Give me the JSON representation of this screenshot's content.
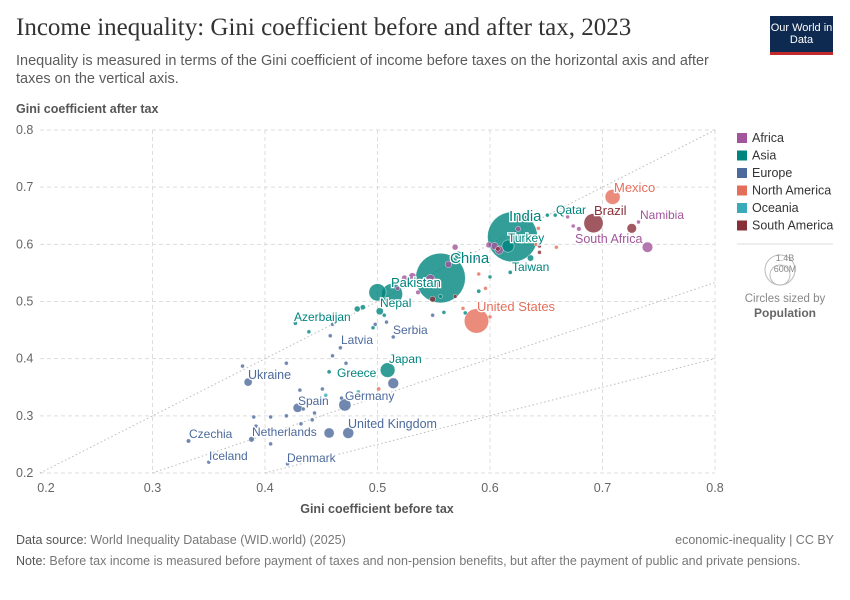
{
  "header": {
    "title": "Income inequality: Gini coefficient before and after tax, 2023",
    "subtitle": "Inequality is measured in terms of the Gini coefficient of income before taxes on the horizontal axis and after taxes on the vertical axis.",
    "logo": "Our World in Data"
  },
  "chart_data": {
    "type": "scatter",
    "xlabel": "Gini coefficient before tax",
    "ylabel": "Gini coefficient after tax",
    "xlim": [
      0.2,
      0.8
    ],
    "ylim": [
      0.2,
      0.8
    ],
    "xticks": [
      "0.2",
      "0.3",
      "0.4",
      "0.5",
      "0.6",
      "0.7",
      "0.8"
    ],
    "yticks": [
      "0.2",
      "0.3",
      "0.4",
      "0.5",
      "0.6",
      "0.7",
      "0.8"
    ],
    "grid": true,
    "reference_lines": [
      "y = x",
      "y = 2x/3",
      "y = x/2"
    ],
    "legend_position": "right",
    "regions": [
      {
        "name": "Africa",
        "color": "#a2559c"
      },
      {
        "name": "Asia",
        "color": "#00847e"
      },
      {
        "name": "Europe",
        "color": "#4c6a9c"
      },
      {
        "name": "North America",
        "color": "#e56e5a"
      },
      {
        "name": "Oceania",
        "color": "#38aaba"
      },
      {
        "name": "South America",
        "color": "#883039"
      }
    ],
    "size_legend": {
      "values": [
        "1.4B",
        "600M"
      ],
      "caption": "Circles sized by",
      "variable": "Population"
    },
    "points": [
      {
        "label": "India",
        "region": "Asia",
        "x": 0.62,
        "y": 0.613,
        "pop": 1430
      },
      {
        "label": "China",
        "region": "Asia",
        "x": 0.556,
        "y": 0.541,
        "pop": 1410
      },
      {
        "label": "Mexico",
        "region": "North America",
        "x": 0.709,
        "y": 0.683,
        "pop": 130
      },
      {
        "label": "Brazil",
        "region": "South America",
        "x": 0.692,
        "y": 0.637,
        "pop": 211
      },
      {
        "label": "Namibia",
        "region": "Africa",
        "x": 0.732,
        "y": 0.639,
        "pop": 3
      },
      {
        "label": "South Africa",
        "region": "Africa",
        "x": 0.74,
        "y": 0.595,
        "pop": 63
      },
      {
        "label": "Qatar",
        "region": "Asia",
        "x": 0.658,
        "y": 0.651,
        "pop": 3
      },
      {
        "label": "Turkey",
        "region": "Asia",
        "x": 0.616,
        "y": 0.597,
        "pop": 87
      },
      {
        "label": "Taiwan",
        "region": "Asia",
        "x": 0.636,
        "y": 0.576,
        "pop": 23
      },
      {
        "label": "Pakistan",
        "region": "Asia",
        "x": 0.513,
        "y": 0.513,
        "pop": 250
      },
      {
        "label": "",
        "region": "Asia",
        "x": 0.5,
        "y": 0.516,
        "pop": 170
      },
      {
        "label": "Nepal",
        "region": "Asia",
        "x": 0.502,
        "y": 0.483,
        "pop": 30
      },
      {
        "label": "Azerbaijan",
        "region": "Asia",
        "x": 0.427,
        "y": 0.462,
        "pop": 10
      },
      {
        "label": "United States",
        "region": "North America",
        "x": 0.588,
        "y": 0.466,
        "pop": 340
      },
      {
        "label": "Serbia",
        "region": "Europe",
        "x": 0.514,
        "y": 0.438,
        "pop": 7
      },
      {
        "label": "Latvia",
        "region": "Europe",
        "x": 0.467,
        "y": 0.419,
        "pop": 2
      },
      {
        "label": "Japan",
        "region": "Asia",
        "x": 0.509,
        "y": 0.38,
        "pop": 124
      },
      {
        "label": "Greece",
        "region": "Asia",
        "x": 0.457,
        "y": 0.377,
        "pop": 10
      },
      {
        "label": "Ukraine",
        "region": "Europe",
        "x": 0.385,
        "y": 0.359,
        "pop": 38
      },
      {
        "label": "Spain",
        "region": "Europe",
        "x": 0.429,
        "y": 0.314,
        "pop": 48
      },
      {
        "label": "Germany",
        "region": "Europe",
        "x": 0.471,
        "y": 0.319,
        "pop": 84
      },
      {
        "label": "",
        "region": "Europe",
        "x": 0.514,
        "y": 0.357,
        "pop": 66
      },
      {
        "label": "United Kingdom",
        "region": "Europe",
        "x": 0.474,
        "y": 0.27,
        "pop": 69
      },
      {
        "label": "",
        "region": "Europe",
        "x": 0.457,
        "y": 0.27,
        "pop": 59
      },
      {
        "label": "Netherlands",
        "region": "Europe",
        "x": 0.388,
        "y": 0.259,
        "pop": 18
      },
      {
        "label": "Czechia",
        "region": "Europe",
        "x": 0.332,
        "y": 0.256,
        "pop": 11
      },
      {
        "label": "Iceland",
        "region": "Europe",
        "x": 0.35,
        "y": 0.219,
        "pop": 1
      },
      {
        "label": "Denmark",
        "region": "Europe",
        "x": 0.42,
        "y": 0.216,
        "pop": 6
      },
      {
        "label": "",
        "region": "Africa",
        "x": 0.569,
        "y": 0.595,
        "pop": 20
      },
      {
        "label": "",
        "region": "Africa",
        "x": 0.587,
        "y": 0.576,
        "pop": 15
      },
      {
        "label": "",
        "region": "Africa",
        "x": 0.604,
        "y": 0.597,
        "pop": 30
      },
      {
        "label": "",
        "region": "Africa",
        "x": 0.674,
        "y": 0.632,
        "pop": 8
      },
      {
        "label": "",
        "region": "Africa",
        "x": 0.679,
        "y": 0.627,
        "pop": 12
      },
      {
        "label": "",
        "region": "Africa",
        "x": 0.625,
        "y": 0.627,
        "pop": 15
      },
      {
        "label": "",
        "region": "Africa",
        "x": 0.669,
        "y": 0.648,
        "pop": 5
      },
      {
        "label": "",
        "region": "Africa",
        "x": 0.698,
        "y": 0.66,
        "pop": 4
      },
      {
        "label": "",
        "region": "Africa",
        "x": 0.563,
        "y": 0.565,
        "pop": 25
      },
      {
        "label": "",
        "region": "Africa",
        "x": 0.547,
        "y": 0.539,
        "pop": 50
      },
      {
        "label": "",
        "region": "Africa",
        "x": 0.531,
        "y": 0.544,
        "pop": 30
      },
      {
        "label": "",
        "region": "Africa",
        "x": 0.524,
        "y": 0.541,
        "pop": 20
      },
      {
        "label": "",
        "region": "Africa",
        "x": 0.518,
        "y": 0.523,
        "pop": 10
      },
      {
        "label": "",
        "region": "Africa",
        "x": 0.608,
        "y": 0.59,
        "pop": 40
      },
      {
        "label": "",
        "region": "Africa",
        "x": 0.599,
        "y": 0.599,
        "pop": 20
      },
      {
        "label": "",
        "region": "Africa",
        "x": 0.536,
        "y": 0.516,
        "pop": 12
      },
      {
        "label": "",
        "region": "Asia",
        "x": 0.651,
        "y": 0.651,
        "pop": 5
      },
      {
        "label": "",
        "region": "Asia",
        "x": 0.662,
        "y": 0.655,
        "pop": 4
      },
      {
        "label": "",
        "region": "Asia",
        "x": 0.572,
        "y": 0.581,
        "pop": 35
      },
      {
        "label": "",
        "region": "Asia",
        "x": 0.59,
        "y": 0.518,
        "pop": 10
      },
      {
        "label": "",
        "region": "Asia",
        "x": 0.6,
        "y": 0.543,
        "pop": 8
      },
      {
        "label": "",
        "region": "Asia",
        "x": 0.556,
        "y": 0.509,
        "pop": 6
      },
      {
        "label": "",
        "region": "Asia",
        "x": 0.496,
        "y": 0.454,
        "pop": 5
      },
      {
        "label": "",
        "region": "Asia",
        "x": 0.506,
        "y": 0.476,
        "pop": 5
      },
      {
        "label": "",
        "region": "Asia",
        "x": 0.482,
        "y": 0.487,
        "pop": 20
      },
      {
        "label": "",
        "region": "Asia",
        "x": 0.487,
        "y": 0.49,
        "pop": 15
      },
      {
        "label": "",
        "region": "Asia",
        "x": 0.439,
        "y": 0.447,
        "pop": 4
      },
      {
        "label": "",
        "region": "Asia",
        "x": 0.578,
        "y": 0.48,
        "pop": 5
      },
      {
        "label": "",
        "region": "Asia",
        "x": 0.559,
        "y": 0.481,
        "pop": 3
      },
      {
        "label": "",
        "region": "Asia",
        "x": 0.618,
        "y": 0.551,
        "pop": 10
      },
      {
        "label": "",
        "region": "Europe",
        "x": 0.508,
        "y": 0.464,
        "pop": 5
      },
      {
        "label": "",
        "region": "Europe",
        "x": 0.498,
        "y": 0.46,
        "pop": 4
      },
      {
        "label": "",
        "region": "Europe",
        "x": 0.549,
        "y": 0.476,
        "pop": 3
      },
      {
        "label": "",
        "region": "Europe",
        "x": 0.46,
        "y": 0.46,
        "pop": 3
      },
      {
        "label": "",
        "region": "Europe",
        "x": 0.458,
        "y": 0.44,
        "pop": 2
      },
      {
        "label": "",
        "region": "Europe",
        "x": 0.46,
        "y": 0.405,
        "pop": 3
      },
      {
        "label": "",
        "region": "Europe",
        "x": 0.472,
        "y": 0.392,
        "pop": 2
      },
      {
        "label": "",
        "region": "Europe",
        "x": 0.38,
        "y": 0.387,
        "pop": 3
      },
      {
        "label": "",
        "region": "Europe",
        "x": 0.419,
        "y": 0.392,
        "pop": 3
      },
      {
        "label": "",
        "region": "Europe",
        "x": 0.431,
        "y": 0.345,
        "pop": 4
      },
      {
        "label": "",
        "region": "Europe",
        "x": 0.451,
        "y": 0.347,
        "pop": 4
      },
      {
        "label": "",
        "region": "Europe",
        "x": 0.434,
        "y": 0.312,
        "pop": 4
      },
      {
        "label": "",
        "region": "Europe",
        "x": 0.444,
        "y": 0.305,
        "pop": 3
      },
      {
        "label": "",
        "region": "Europe",
        "x": 0.39,
        "y": 0.298,
        "pop": 3
      },
      {
        "label": "",
        "region": "Europe",
        "x": 0.405,
        "y": 0.298,
        "pop": 3
      },
      {
        "label": "",
        "region": "Europe",
        "x": 0.419,
        "y": 0.3,
        "pop": 5
      },
      {
        "label": "",
        "region": "Europe",
        "x": 0.432,
        "y": 0.286,
        "pop": 3
      },
      {
        "label": "",
        "region": "Europe",
        "x": 0.392,
        "y": 0.282,
        "pop": 3
      },
      {
        "label": "",
        "region": "Europe",
        "x": 0.405,
        "y": 0.251,
        "pop": 3
      },
      {
        "label": "",
        "region": "Europe",
        "x": 0.405,
        "y": 0.27,
        "pop": 3
      },
      {
        "label": "",
        "region": "Europe",
        "x": 0.442,
        "y": 0.293,
        "pop": 4
      },
      {
        "label": "",
        "region": "Europe",
        "x": 0.468,
        "y": 0.331,
        "pop": 4
      },
      {
        "label": "",
        "region": "North America",
        "x": 0.501,
        "y": 0.347,
        "pop": 10
      },
      {
        "label": "",
        "region": "North America",
        "x": 0.576,
        "y": 0.488,
        "pop": 3
      },
      {
        "label": "",
        "region": "North America",
        "x": 0.606,
        "y": 0.497,
        "pop": 5
      },
      {
        "label": "",
        "region": "North America",
        "x": 0.596,
        "y": 0.523,
        "pop": 4
      },
      {
        "label": "",
        "region": "North America",
        "x": 0.59,
        "y": 0.548,
        "pop": 6
      },
      {
        "label": "",
        "region": "North America",
        "x": 0.6,
        "y": 0.473,
        "pop": 3
      },
      {
        "label": "",
        "region": "North America",
        "x": 0.659,
        "y": 0.595,
        "pop": 3
      },
      {
        "label": "",
        "region": "North America",
        "x": 0.643,
        "y": 0.628,
        "pop": 5
      },
      {
        "label": "",
        "region": "North America",
        "x": 0.641,
        "y": 0.6,
        "pop": 4
      },
      {
        "label": "",
        "region": "Oceania",
        "x": 0.483,
        "y": 0.342,
        "pop": 5
      },
      {
        "label": "",
        "region": "Oceania",
        "x": 0.454,
        "y": 0.336,
        "pop": 1
      },
      {
        "label": "",
        "region": "South America",
        "x": 0.549,
        "y": 0.504,
        "pop": 20
      },
      {
        "label": "",
        "region": "South America",
        "x": 0.569,
        "y": 0.509,
        "pop": 8
      },
      {
        "label": "",
        "region": "South America",
        "x": 0.644,
        "y": 0.597,
        "pop": 7
      },
      {
        "label": "",
        "region": "South America",
        "x": 0.644,
        "y": 0.586,
        "pop": 6
      },
      {
        "label": "",
        "region": "South America",
        "x": 0.712,
        "y": 0.656,
        "pop": 8
      },
      {
        "label": "",
        "region": "South America",
        "x": 0.726,
        "y": 0.628,
        "pop": 52
      },
      {
        "label": "",
        "region": "South America",
        "x": 0.607,
        "y": 0.592,
        "pop": 12
      }
    ]
  },
  "footer": {
    "source_label": "Data source:",
    "source": "World Inequality Database (WID.world) (2025)",
    "note_label": "Note:",
    "note": "Before tax income is measured before payment of taxes and non-pension benefits, but after the payment of public and private pensions.",
    "license": "economic-inequality | CC BY"
  }
}
